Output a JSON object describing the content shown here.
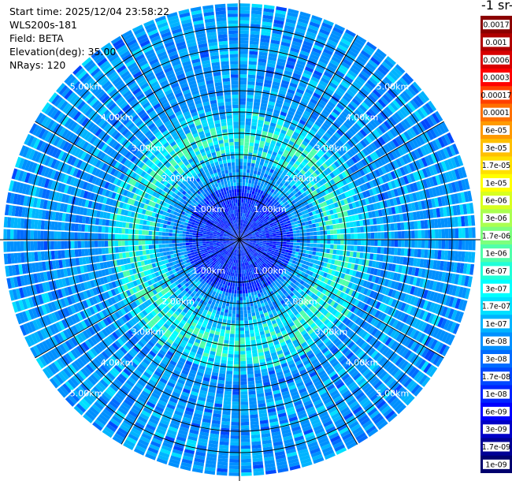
{
  "header": {
    "start_time": "Start time: 2025/12/04 23:58:22",
    "instrument": "WLS200s-181",
    "field": "Field: BETA",
    "elevation": "Elevation(deg): 35.00",
    "nrays": "NRays: 120"
  },
  "colorbar": {
    "title": "-1 sr-",
    "labels": [
      "0.0017",
      "0.001",
      "0.0006",
      "0.0003",
      "0.00017",
      "0.0001",
      "6e-05",
      "3e-05",
      "1.7e-05",
      "1e-05",
      "6e-06",
      "3e-06",
      "1.7e-06",
      "1e-06",
      "6e-07",
      "3e-07",
      "1.7e-07",
      "1e-07",
      "6e-08",
      "3e-08",
      "1.7e-08",
      "1e-08",
      "6e-09",
      "3e-09",
      "1.7e-09",
      "1e-09"
    ],
    "colors": [
      "#8b0000",
      "#b00000",
      "#d80000",
      "#ff0000",
      "#ff4000",
      "#ff7000",
      "#ff9a00",
      "#ffc000",
      "#ffe000",
      "#ffff00",
      "#d8ff20",
      "#aaff50",
      "#7dff7d",
      "#50ffaa",
      "#20ffd8",
      "#00ffff",
      "#00e0ff",
      "#00b4ff",
      "#0090ff",
      "#006cff",
      "#0048ff",
      "#0024ff",
      "#0000ff",
      "#0000c8",
      "#000096",
      "#00006e"
    ]
  },
  "chart_data": {
    "type": "heatmap",
    "subtype": "polar-ppi",
    "field": "BETA",
    "elevation_deg": 35.0,
    "nrays": 120,
    "range_rings_km": [
      {
        "label": "1.00km",
        "value": 1.0
      },
      {
        "label": "2.00km",
        "value": 2.0
      },
      {
        "label": "3.00km",
        "value": 3.0
      },
      {
        "label": "4.00km",
        "value": 4.0
      },
      {
        "label": "5.00km",
        "value": 5.0
      }
    ],
    "spoke_step_deg": 30,
    "max_range_km": 5.55,
    "scale": "log",
    "value_range": [
      1e-09,
      0.0017
    ],
    "annotation": "Enhanced backscatter ring (~1e-07 to 1e-06) between 1.8 km and 3.1 km; background mostly 1e-08 to 6e-08; near-centre values 1e-09 to 1e-08"
  }
}
